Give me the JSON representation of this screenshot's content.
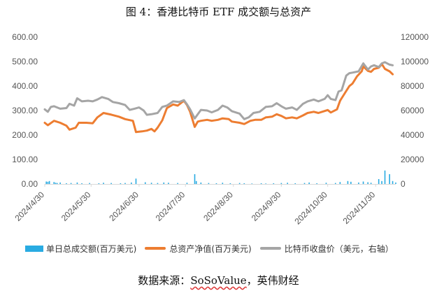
{
  "title": "图 4：香港比特币 ETF 成交额与总资产",
  "source": {
    "prefix": "数据来源：",
    "value": "SoSoValue",
    "suffix": "，英伟财经"
  },
  "colors": {
    "volume": "#29ABE2",
    "aum": "#ED7D31",
    "btc": "#A5A5A5",
    "axis": "#D9D9D9"
  },
  "chart_data": {
    "type": "bar+line",
    "y_left": {
      "min": 0,
      "max": 600,
      "ticks": [
        "0.00",
        "100.00",
        "200.00",
        "300.00",
        "400.00",
        "500.00",
        "600.00"
      ]
    },
    "y_right": {
      "min": 0,
      "max": 120000,
      "ticks": [
        "0",
        "20000",
        "40000",
        "60000",
        "80000",
        "100000",
        "120000"
      ]
    },
    "x_ticks": [
      "2024/4/30",
      "2024/5/30",
      "2024/6/30",
      "2024/7/30",
      "2024/8/30",
      "2024/9/30",
      "2024/10/30",
      "2024/11/30"
    ],
    "legend": [
      "单日总成交额(百万美元)",
      "总资产净值(百万美元)",
      "比特币收盘价（美元，右轴）"
    ],
    "series": [
      {
        "name": "单日总成交额(百万美元)",
        "type": "bar",
        "axis": "left",
        "points": [
          [
            "2024-05-01",
            10
          ],
          [
            "2024-05-02",
            9
          ],
          [
            "2024-05-03",
            12
          ],
          [
            "2024-05-06",
            8
          ],
          [
            "2024-05-07",
            5
          ],
          [
            "2024-05-08",
            4
          ],
          [
            "2024-05-10",
            6
          ],
          [
            "2024-05-14",
            3
          ],
          [
            "2024-05-17",
            4
          ],
          [
            "2024-05-21",
            6
          ],
          [
            "2024-05-24",
            3
          ],
          [
            "2024-05-29",
            4
          ],
          [
            "2024-06-04",
            3
          ],
          [
            "2024-06-07",
            5
          ],
          [
            "2024-06-12",
            4
          ],
          [
            "2024-06-18",
            3
          ],
          [
            "2024-06-21",
            4
          ],
          [
            "2024-06-25",
            6
          ],
          [
            "2024-06-28",
            22
          ],
          [
            "2024-07-04",
            7
          ],
          [
            "2024-07-08",
            5
          ],
          [
            "2024-07-12",
            4
          ],
          [
            "2024-07-16",
            6
          ],
          [
            "2024-07-19",
            5
          ],
          [
            "2024-07-25",
            4
          ],
          [
            "2024-07-31",
            5
          ],
          [
            "2024-08-05",
            40
          ],
          [
            "2024-08-06",
            12
          ],
          [
            "2024-08-09",
            6
          ],
          [
            "2024-08-14",
            4
          ],
          [
            "2024-08-19",
            3
          ],
          [
            "2024-08-23",
            5
          ],
          [
            "2024-08-28",
            3
          ],
          [
            "2024-09-03",
            4
          ],
          [
            "2024-09-06",
            3
          ],
          [
            "2024-09-11",
            2
          ],
          [
            "2024-09-17",
            3
          ],
          [
            "2024-09-20",
            2
          ],
          [
            "2024-09-25",
            3
          ],
          [
            "2024-09-30",
            4
          ],
          [
            "2024-10-04",
            5
          ],
          [
            "2024-10-09",
            3
          ],
          [
            "2024-10-15",
            4
          ],
          [
            "2024-10-18",
            6
          ],
          [
            "2024-10-23",
            3
          ],
          [
            "2024-10-29",
            5
          ],
          [
            "2024-11-04",
            4
          ],
          [
            "2024-11-07",
            8
          ],
          [
            "2024-11-12",
            12
          ],
          [
            "2024-11-14",
            9
          ],
          [
            "2024-11-19",
            6
          ],
          [
            "2024-11-22",
            10
          ],
          [
            "2024-11-25",
            7
          ],
          [
            "2024-11-27",
            5
          ],
          [
            "2024-12-02",
            20
          ],
          [
            "2024-12-04",
            12
          ],
          [
            "2024-12-06",
            55
          ],
          [
            "2024-12-09",
            40
          ],
          [
            "2024-12-11",
            12
          ],
          [
            "2024-12-13",
            6
          ]
        ]
      },
      {
        "name": "总资产净值(百万美元)",
        "type": "line",
        "axis": "left",
        "points": [
          [
            "2024-04-30",
            250
          ],
          [
            "2024-05-02",
            240
          ],
          [
            "2024-05-06",
            258
          ],
          [
            "2024-05-10",
            250
          ],
          [
            "2024-05-14",
            238
          ],
          [
            "2024-05-16",
            222
          ],
          [
            "2024-05-20",
            230
          ],
          [
            "2024-05-22",
            250
          ],
          [
            "2024-05-27",
            250
          ],
          [
            "2024-05-31",
            248
          ],
          [
            "2024-06-03",
            272
          ],
          [
            "2024-06-07",
            290
          ],
          [
            "2024-06-12",
            283
          ],
          [
            "2024-06-17",
            275
          ],
          [
            "2024-06-21",
            265
          ],
          [
            "2024-06-26",
            258
          ],
          [
            "2024-06-28",
            212
          ],
          [
            "2024-07-02",
            215
          ],
          [
            "2024-07-05",
            218
          ],
          [
            "2024-07-08",
            225
          ],
          [
            "2024-07-10",
            215
          ],
          [
            "2024-07-12",
            230
          ],
          [
            "2024-07-15",
            260
          ],
          [
            "2024-07-18",
            310
          ],
          [
            "2024-07-22",
            325
          ],
          [
            "2024-07-25",
            320
          ],
          [
            "2024-07-29",
            340
          ],
          [
            "2024-07-31",
            322
          ],
          [
            "2024-08-02",
            295
          ],
          [
            "2024-08-05",
            233
          ],
          [
            "2024-08-07",
            255
          ],
          [
            "2024-08-09",
            258
          ],
          [
            "2024-08-13",
            262
          ],
          [
            "2024-08-16",
            258
          ],
          [
            "2024-08-20",
            262
          ],
          [
            "2024-08-23",
            268
          ],
          [
            "2024-08-27",
            265
          ],
          [
            "2024-08-29",
            255
          ],
          [
            "2024-09-03",
            250
          ],
          [
            "2024-09-06",
            245
          ],
          [
            "2024-09-10",
            258
          ],
          [
            "2024-09-13",
            262
          ],
          [
            "2024-09-17",
            262
          ],
          [
            "2024-09-20",
            272
          ],
          [
            "2024-09-24",
            275
          ],
          [
            "2024-09-27",
            285
          ],
          [
            "2024-09-30",
            278
          ],
          [
            "2024-10-03",
            268
          ],
          [
            "2024-10-07",
            272
          ],
          [
            "2024-10-10",
            268
          ],
          [
            "2024-10-14",
            280
          ],
          [
            "2024-10-17",
            290
          ],
          [
            "2024-10-21",
            295
          ],
          [
            "2024-10-24",
            290
          ],
          [
            "2024-10-28",
            298
          ],
          [
            "2024-10-30",
            302
          ],
          [
            "2024-11-01",
            292
          ],
          [
            "2024-11-05",
            305
          ],
          [
            "2024-11-07",
            340
          ],
          [
            "2024-11-11",
            380
          ],
          [
            "2024-11-13",
            400
          ],
          [
            "2024-11-15",
            410
          ],
          [
            "2024-11-18",
            440
          ],
          [
            "2024-11-21",
            460
          ],
          [
            "2024-11-22",
            480
          ],
          [
            "2024-11-25",
            462
          ],
          [
            "2024-11-27",
            458
          ],
          [
            "2024-11-29",
            470
          ],
          [
            "2024-12-02",
            475
          ],
          [
            "2024-12-04",
            490
          ],
          [
            "2024-12-06",
            470
          ],
          [
            "2024-12-09",
            460
          ],
          [
            "2024-12-11",
            448
          ]
        ]
      },
      {
        "name": "比特币收盘价（美元，右轴）",
        "type": "line",
        "axis": "right",
        "points": [
          [
            "2024-04-30",
            61000
          ],
          [
            "2024-05-02",
            59000
          ],
          [
            "2024-05-04",
            63000
          ],
          [
            "2024-05-06",
            63500
          ],
          [
            "2024-05-10",
            61500
          ],
          [
            "2024-05-14",
            62000
          ],
          [
            "2024-05-16",
            65500
          ],
          [
            "2024-05-19",
            64000
          ],
          [
            "2024-05-21",
            70000
          ],
          [
            "2024-05-24",
            67500
          ],
          [
            "2024-05-28",
            68000
          ],
          [
            "2024-05-31",
            67500
          ],
          [
            "2024-06-03",
            69000
          ],
          [
            "2024-06-06",
            71000
          ],
          [
            "2024-06-10",
            69500
          ],
          [
            "2024-06-13",
            67000
          ],
          [
            "2024-06-17",
            66000
          ],
          [
            "2024-06-21",
            64500
          ],
          [
            "2024-06-24",
            60500
          ],
          [
            "2024-06-27",
            61500
          ],
          [
            "2024-06-30",
            62500
          ],
          [
            "2024-07-03",
            60000
          ],
          [
            "2024-07-05",
            56500
          ],
          [
            "2024-07-08",
            57000
          ],
          [
            "2024-07-12",
            58000
          ],
          [
            "2024-07-15",
            63000
          ],
          [
            "2024-07-18",
            64000
          ],
          [
            "2024-07-22",
            67500
          ],
          [
            "2024-07-26",
            67000
          ],
          [
            "2024-07-29",
            68500
          ],
          [
            "2024-07-31",
            65000
          ],
          [
            "2024-08-02",
            61000
          ],
          [
            "2024-08-05",
            53500
          ],
          [
            "2024-08-07",
            57000
          ],
          [
            "2024-08-09",
            60500
          ],
          [
            "2024-08-13",
            60000
          ],
          [
            "2024-08-16",
            58500
          ],
          [
            "2024-08-20",
            60500
          ],
          [
            "2024-08-23",
            64000
          ],
          [
            "2024-08-26",
            62500
          ],
          [
            "2024-08-29",
            59500
          ],
          [
            "2024-09-03",
            57500
          ],
          [
            "2024-09-06",
            53000
          ],
          [
            "2024-09-09",
            54500
          ],
          [
            "2024-09-12",
            58000
          ],
          [
            "2024-09-16",
            59000
          ],
          [
            "2024-09-20",
            63000
          ],
          [
            "2024-09-24",
            63500
          ],
          [
            "2024-09-27",
            66000
          ],
          [
            "2024-09-30",
            63500
          ],
          [
            "2024-10-03",
            61500
          ],
          [
            "2024-10-07",
            62500
          ],
          [
            "2024-10-10",
            60500
          ],
          [
            "2024-10-14",
            65500
          ],
          [
            "2024-10-17",
            67500
          ],
          [
            "2024-10-21",
            69000
          ],
          [
            "2024-10-24",
            67500
          ],
          [
            "2024-10-28",
            69500
          ],
          [
            "2024-10-30",
            72500
          ],
          [
            "2024-11-01",
            69500
          ],
          [
            "2024-11-04",
            68500
          ],
          [
            "2024-11-06",
            75500
          ],
          [
            "2024-11-08",
            76500
          ],
          [
            "2024-11-11",
            88500
          ],
          [
            "2024-11-13",
            90500
          ],
          [
            "2024-11-15",
            91000
          ],
          [
            "2024-11-19",
            92000
          ],
          [
            "2024-11-22",
            98500
          ],
          [
            "2024-11-25",
            93500
          ],
          [
            "2024-11-27",
            96000
          ],
          [
            "2024-11-29",
            97000
          ],
          [
            "2024-12-02",
            95500
          ],
          [
            "2024-12-04",
            98500
          ],
          [
            "2024-12-06",
            99500
          ],
          [
            "2024-12-09",
            97500
          ],
          [
            "2024-12-11",
            97000
          ]
        ]
      }
    ]
  }
}
